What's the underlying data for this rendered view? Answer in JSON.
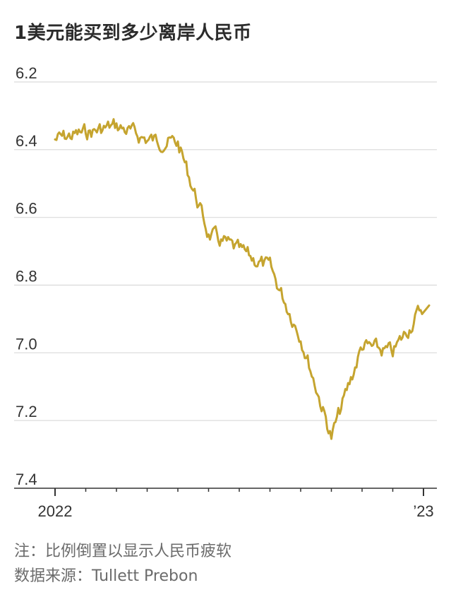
{
  "title": "1美元能买到多少离岸人民币",
  "note": "注：比例倒置以显示人民币疲软",
  "source": "数据来源：Tullett Prebon",
  "colors": {
    "line": "#c5a42f",
    "grid": "#d9d9d9",
    "axis": "#333333"
  },
  "chart_data": {
    "type": "line",
    "inverted_y": true,
    "grid": true,
    "ylim": [
      6.2,
      7.4
    ],
    "yticks": [
      "6.2",
      "6.4",
      "6.6",
      "6.8",
      "7.0",
      "7.2",
      "7.4"
    ],
    "xticks": [
      "2022",
      "’23"
    ],
    "x": [
      "2022-01",
      "2022-02",
      "2022-03",
      "2022-04",
      "2022-05",
      "2022-06",
      "2022-07",
      "2022-08",
      "2022-09",
      "2022-10",
      "2022-11",
      "2022-12",
      "2023-01"
    ],
    "series": [
      {
        "values": [
          6.37,
          6.35,
          6.33,
          6.37,
          6.38,
          6.65,
          6.7,
          6.75,
          6.95,
          7.25,
          6.98,
          7.0,
          6.86
        ]
      }
    ]
  }
}
